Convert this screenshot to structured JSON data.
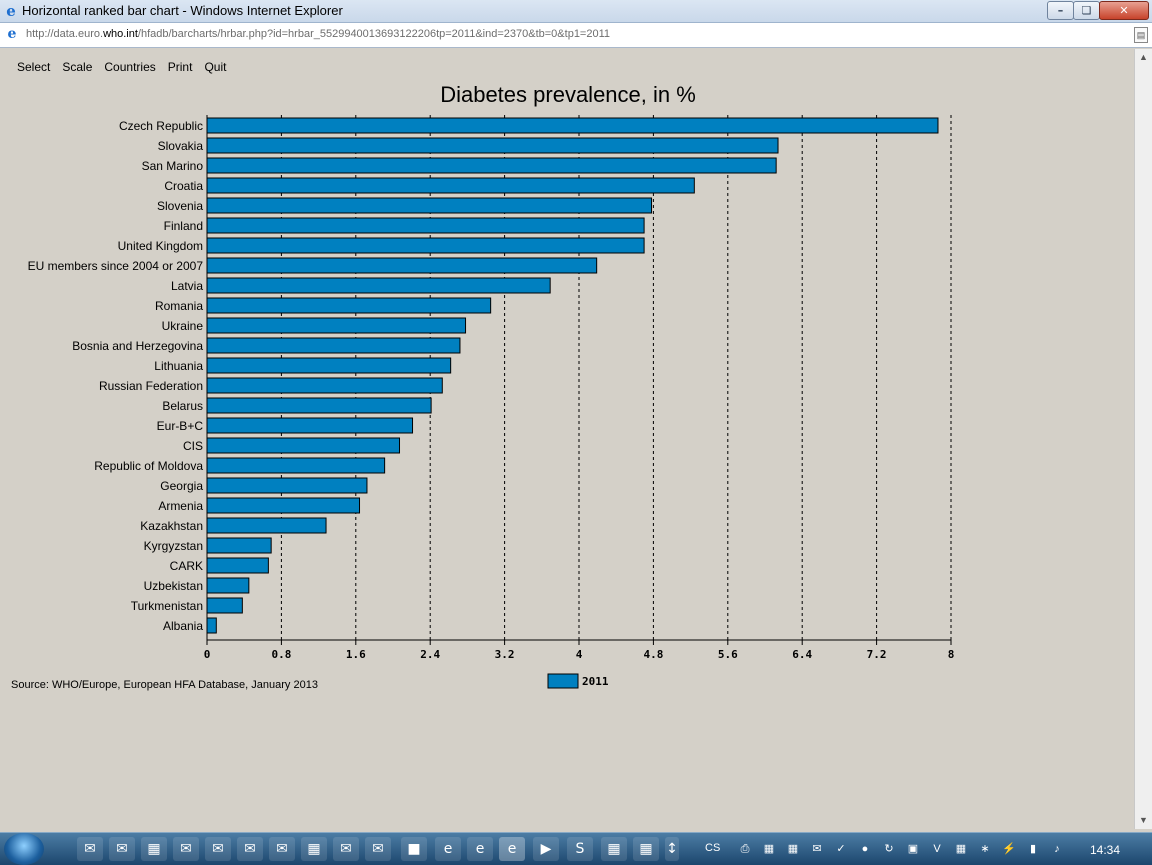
{
  "window": {
    "title": "Horizontal ranked bar chart - Windows Internet Explorer",
    "url_prefix": "http://data.euro.",
    "url_host": "who.int",
    "url_rest": "/hfadb/barcharts/hrbar.php?id=hrbar_5529940013693122206tp=2011&ind=2370&tb=0&tp1=2011"
  },
  "menu": [
    "Select",
    "Scale",
    "Countries",
    "Print",
    "Quit"
  ],
  "chart_data": {
    "type": "bar",
    "orientation": "horizontal",
    "title": "Diabetes prevalence, in %",
    "categories": [
      "Czech Republic",
      "Slovakia",
      "San Marino",
      "Croatia",
      "Slovenia",
      "Finland",
      "United Kingdom",
      "EU members since 2004 or 2007",
      "Latvia",
      "Romania",
      "Ukraine",
      "Bosnia and Herzegovina",
      "Lithuania",
      "Russian Federation",
      "Belarus",
      "Eur-B+C",
      "CIS",
      "Republic of Moldova",
      "Georgia",
      "Armenia",
      "Kazakhstan",
      "Kyrgyzstan",
      "CARK",
      "Uzbekistan",
      "Turkmenistan",
      "Albania"
    ],
    "series": [
      {
        "name": "2011",
        "values": [
          7.86,
          6.14,
          6.12,
          5.24,
          4.78,
          4.7,
          4.7,
          4.19,
          3.69,
          3.05,
          2.78,
          2.72,
          2.62,
          2.53,
          2.41,
          2.21,
          2.07,
          1.91,
          1.72,
          1.64,
          1.28,
          0.69,
          0.66,
          0.45,
          0.38,
          0.1
        ]
      }
    ],
    "xlim": [
      0,
      8
    ],
    "xticks": [
      "0",
      "0.8",
      "1.6",
      "2.4",
      "3.2",
      "4",
      "4.8",
      "5.6",
      "6.4",
      "7.2",
      "8"
    ],
    "grid": true,
    "legend_position": "bottom",
    "bar_color": "#0080c0"
  },
  "source": "Source: WHO/Europe, European HFA Database, January 2013",
  "taskbar": {
    "language": "CS",
    "clock": "14:34"
  }
}
